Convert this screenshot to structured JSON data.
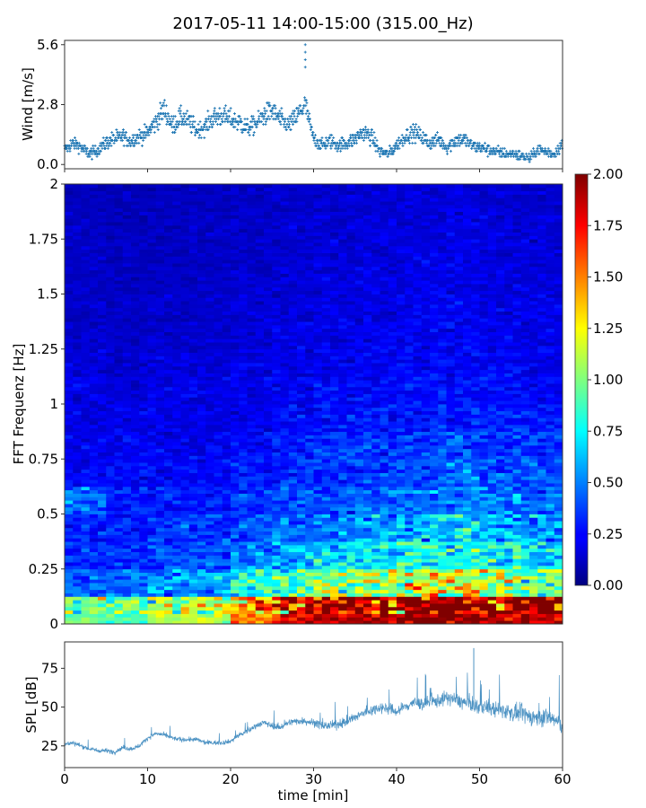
{
  "chart_data": [
    {
      "type": "scatter",
      "title": "2017-05-11 14:00-15:00 (315.00_Hz)",
      "ylabel": "Wind [m/s]",
      "xlim": [
        0,
        60
      ],
      "ylim": [
        -0.2,
        5.8
      ],
      "yticks": [
        "0.0",
        "2.8",
        "5.6"
      ],
      "ytick_values": [
        0,
        2.8,
        5.6
      ],
      "color": "#1f77b4",
      "marker": "+",
      "x_minutes_step": 1,
      "wind_mean_per_minute": [
        0.7,
        1.0,
        0.8,
        0.5,
        0.7,
        1.0,
        1.2,
        1.3,
        1.1,
        1.3,
        1.5,
        2.0,
        2.6,
        1.8,
        2.2,
        2.0,
        1.6,
        1.8,
        2.2,
        2.3,
        2.1,
        2.0,
        1.7,
        1.9,
        2.3,
        2.5,
        2.1,
        1.8,
        2.3,
        2.8,
        1.2,
        0.9,
        1.1,
        0.9,
        1.0,
        1.2,
        1.5,
        1.3,
        0.6,
        0.5,
        0.9,
        1.3,
        1.5,
        1.3,
        1.0,
        1.2,
        0.8,
        1.1,
        1.2,
        0.9,
        0.8,
        0.7,
        0.6,
        0.5,
        0.5,
        0.4,
        0.3,
        0.7,
        0.6,
        0.5,
        1.0
      ],
      "peak": {
        "x": 29,
        "y": 5.6
      }
    },
    {
      "type": "heatmap",
      "ylabel": "FFT Frequenz [Hz]",
      "xlim": [
        0,
        60
      ],
      "ylim": [
        0,
        2
      ],
      "yticks": [
        "0",
        "0.25",
        "0.5",
        "0.75",
        "1",
        "1.25",
        "1.5",
        "1.75",
        "2"
      ],
      "ytick_values": [
        0,
        0.25,
        0.5,
        0.75,
        1,
        1.25,
        1.5,
        1.75,
        2
      ],
      "colormap": "jet",
      "time_bin_minutes": 5,
      "freq_bin_hz": 0.125,
      "values_rows_low_to_high_freq": [
        [
          1.0,
          0.9,
          1.1,
          1.1,
          1.5,
          1.8,
          1.9,
          1.9,
          2.0,
          2.0,
          1.9,
          1.9
        ],
        [
          0.45,
          0.45,
          0.55,
          0.55,
          0.8,
          0.9,
          1.0,
          1.1,
          1.2,
          1.2,
          1.1,
          1.0
        ],
        [
          0.35,
          0.35,
          0.4,
          0.4,
          0.5,
          0.6,
          0.65,
          0.7,
          0.8,
          0.8,
          0.75,
          0.7
        ],
        [
          0.3,
          0.3,
          0.35,
          0.35,
          0.4,
          0.45,
          0.5,
          0.55,
          0.6,
          0.65,
          0.6,
          0.55
        ],
        [
          0.45,
          0.3,
          0.3,
          0.3,
          0.35,
          0.4,
          0.4,
          0.45,
          0.5,
          0.5,
          0.5,
          0.45
        ],
        [
          0.25,
          0.25,
          0.25,
          0.25,
          0.3,
          0.35,
          0.35,
          0.4,
          0.4,
          0.45,
          0.4,
          0.4
        ],
        [
          0.22,
          0.22,
          0.22,
          0.22,
          0.25,
          0.3,
          0.35,
          0.35,
          0.35,
          0.4,
          0.35,
          0.35
        ],
        [
          0.2,
          0.2,
          0.2,
          0.2,
          0.22,
          0.25,
          0.28,
          0.3,
          0.3,
          0.32,
          0.3,
          0.3
        ],
        [
          0.2,
          0.18,
          0.2,
          0.2,
          0.2,
          0.22,
          0.25,
          0.25,
          0.28,
          0.28,
          0.27,
          0.25
        ],
        [
          0.18,
          0.16,
          0.18,
          0.18,
          0.2,
          0.2,
          0.22,
          0.22,
          0.25,
          0.25,
          0.24,
          0.22
        ],
        [
          0.16,
          0.15,
          0.16,
          0.16,
          0.18,
          0.2,
          0.2,
          0.22,
          0.22,
          0.24,
          0.22,
          0.2
        ],
        [
          0.15,
          0.14,
          0.15,
          0.15,
          0.17,
          0.18,
          0.2,
          0.2,
          0.22,
          0.22,
          0.2,
          0.2
        ],
        [
          0.14,
          0.13,
          0.14,
          0.15,
          0.16,
          0.17,
          0.18,
          0.2,
          0.2,
          0.2,
          0.2,
          0.18
        ],
        [
          0.14,
          0.13,
          0.13,
          0.14,
          0.15,
          0.16,
          0.18,
          0.18,
          0.2,
          0.2,
          0.18,
          0.18
        ],
        [
          0.13,
          0.12,
          0.13,
          0.14,
          0.15,
          0.16,
          0.17,
          0.18,
          0.18,
          0.2,
          0.18,
          0.17
        ],
        [
          0.12,
          0.12,
          0.12,
          0.13,
          0.14,
          0.15,
          0.16,
          0.17,
          0.18,
          0.18,
          0.17,
          0.16
        ]
      ],
      "colorbar": {
        "range": [
          0,
          2
        ],
        "ticks": [
          "0.00",
          "0.25",
          "0.50",
          "0.75",
          "1.00",
          "1.25",
          "1.50",
          "1.75",
          "2.00"
        ],
        "tick_values": [
          0,
          0.25,
          0.5,
          0.75,
          1,
          1.25,
          1.5,
          1.75,
          2
        ]
      }
    },
    {
      "type": "line",
      "xlabel": "time [min]",
      "ylabel": "SPL [dB]",
      "xlim": [
        0,
        60
      ],
      "ylim": [
        11,
        92
      ],
      "xticks": [
        "0",
        "10",
        "20",
        "30",
        "40",
        "50",
        "60"
      ],
      "xtick_values": [
        0,
        10,
        20,
        30,
        40,
        50,
        60
      ],
      "yticks": [
        "25",
        "50",
        "75"
      ],
      "ytick_values": [
        25,
        50,
        75
      ],
      "color": "#1f77b4",
      "spl_mean_per_minute": [
        26,
        27,
        25,
        23,
        22,
        22,
        21,
        24,
        23,
        25,
        30,
        33,
        32,
        30,
        29,
        29,
        29,
        27,
        27,
        27,
        28,
        32,
        34,
        38,
        40,
        38,
        37,
        40,
        41,
        41,
        40,
        38,
        38,
        39,
        41,
        43,
        46,
        48,
        50,
        49,
        47,
        50,
        53,
        52,
        53,
        54,
        56,
        55,
        53,
        52,
        50,
        50,
        48,
        48,
        46,
        46,
        44,
        43,
        44,
        42,
        38
      ],
      "peak": {
        "x": 49.3,
        "y": 88
      }
    }
  ]
}
